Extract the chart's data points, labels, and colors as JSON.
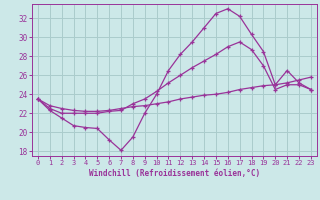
{
  "xlabel": "Windchill (Refroidissement éolien,°C)",
  "background_color": "#cce8e8",
  "grid_color": "#aacccc",
  "line_color": "#993399",
  "xlim": [
    -0.5,
    23.5
  ],
  "ylim": [
    17.5,
    33.5
  ],
  "xticks": [
    0,
    1,
    2,
    3,
    4,
    5,
    6,
    7,
    8,
    9,
    10,
    11,
    12,
    13,
    14,
    15,
    16,
    17,
    18,
    19,
    20,
    21,
    22,
    23
  ],
  "yticks": [
    18,
    20,
    22,
    24,
    26,
    28,
    30,
    32
  ],
  "line1_x": [
    0,
    1,
    2,
    3,
    4,
    5,
    6,
    7,
    8,
    9,
    10,
    11,
    12,
    13,
    14,
    15,
    16,
    17,
    18,
    19,
    20,
    21,
    22,
    23
  ],
  "line1_y": [
    23.5,
    22.3,
    21.5,
    20.7,
    20.5,
    20.4,
    19.2,
    18.1,
    19.5,
    22.0,
    24.0,
    26.5,
    28.2,
    29.5,
    31.0,
    32.5,
    33.0,
    32.2,
    30.3,
    28.5,
    25.0,
    26.5,
    25.2,
    24.5
  ],
  "line2_x": [
    0,
    1,
    2,
    3,
    4,
    5,
    6,
    7,
    8,
    9,
    10,
    11,
    12,
    13,
    14,
    15,
    16,
    17,
    18,
    19,
    20,
    21,
    22,
    23
  ],
  "line2_y": [
    23.5,
    22.5,
    22.0,
    22.0,
    22.0,
    22.0,
    22.2,
    22.3,
    23.0,
    23.5,
    24.3,
    25.2,
    26.0,
    26.8,
    27.5,
    28.2,
    29.0,
    29.5,
    28.7,
    27.0,
    24.5,
    25.0,
    25.0,
    24.5
  ],
  "line3_x": [
    0,
    1,
    2,
    3,
    4,
    5,
    6,
    7,
    8,
    9,
    10,
    11,
    12,
    13,
    14,
    15,
    16,
    17,
    18,
    19,
    20,
    21,
    22,
    23
  ],
  "line3_y": [
    23.5,
    22.8,
    22.5,
    22.3,
    22.2,
    22.2,
    22.3,
    22.5,
    22.7,
    22.8,
    23.0,
    23.2,
    23.5,
    23.7,
    23.9,
    24.0,
    24.2,
    24.5,
    24.7,
    24.9,
    25.0,
    25.2,
    25.5,
    25.8
  ]
}
